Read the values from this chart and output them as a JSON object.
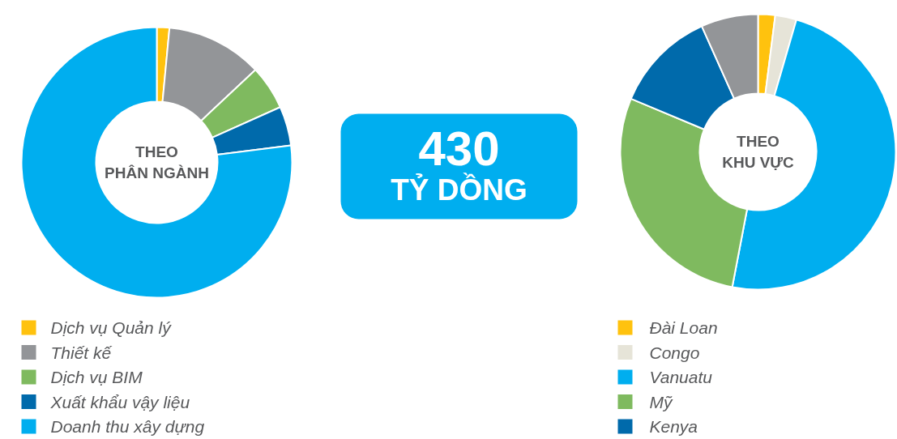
{
  "chart_data": [
    {
      "type": "donut",
      "title": "THEO\nPHÂN NGÀNH",
      "categories": [
        "Dịch vụ Quản lý",
        "Thiết kế",
        " Dịch vụ BIM",
        "Xuất khẩu vậy liệu",
        "Doanh thu xây dựng"
      ],
      "values": [
        1.5,
        11.5,
        5.3,
        4.7,
        77
      ],
      "colors": [
        "#ffc20e",
        "#939598",
        "#7fba5f",
        "#006aab",
        "#00aeef"
      ],
      "legend": "bottom"
    },
    {
      "type": "other",
      "title": "430",
      "subtitle": "TỶ DỒNG",
      "color": "#00aeef"
    },
    {
      "type": "donut",
      "title": "THEO\nKHU VỰC",
      "categories": [
        "Đài Loan",
        "Congo",
        "Vanuatu",
        "Mỹ",
        "Kenya",
        null
      ],
      "values": [
        2,
        2.5,
        48.5,
        28.3,
        12,
        6.7
      ],
      "colors": [
        "#ffc20e",
        "#e6e4d8",
        "#00aeef",
        "#7fba5f",
        "#006aab",
        "#939598"
      ],
      "legend": "bottom"
    }
  ]
}
